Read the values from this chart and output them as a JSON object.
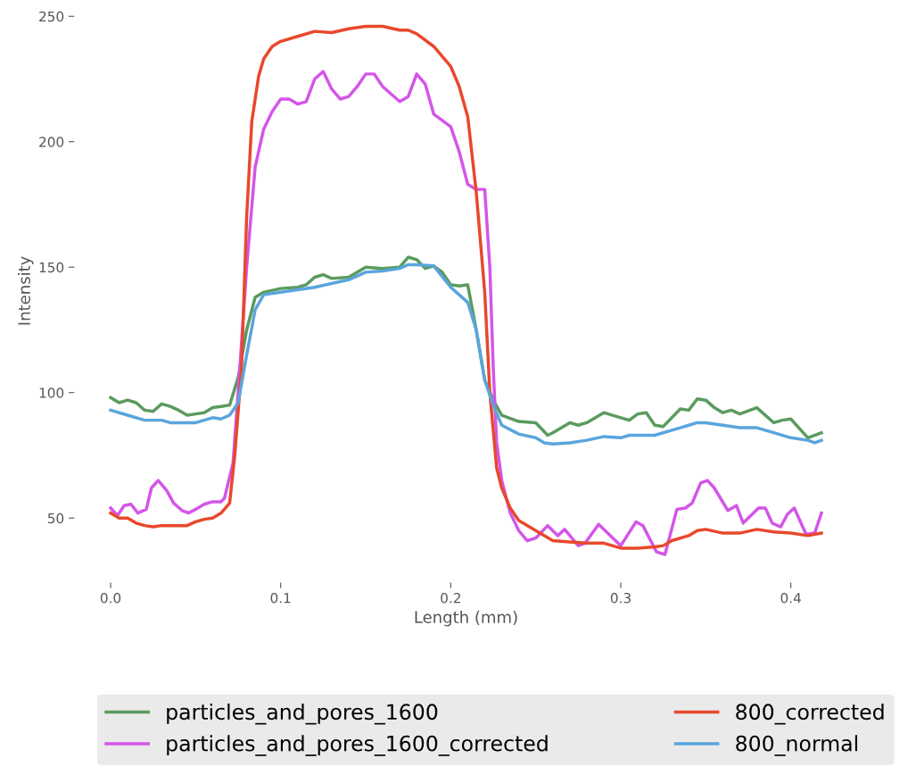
{
  "chart_data": {
    "type": "line",
    "xlabel": "Length (mm)",
    "ylabel": "Intensity",
    "xlim": [
      -0.021,
      0.439
    ],
    "ylim": [
      24.5,
      256.5
    ],
    "xticks": [
      {
        "value": 0,
        "label": "0.0"
      },
      0.1,
      0.2,
      0.3,
      0.4
    ],
    "yticks": [
      50,
      100,
      150,
      200,
      250
    ],
    "grid": false,
    "legend": "bottom",
    "marker": "none",
    "line_style": "solid",
    "series": [
      {
        "name": "particles_and_pores_1600",
        "color": "#5a9b5e",
        "x": [
          0,
          0.005,
          0.01,
          0.015,
          0.02,
          0.025,
          0.03,
          0.035,
          0.04,
          0.045,
          0.05,
          0.055,
          0.06,
          0.065,
          0.07,
          0.075,
          0.08,
          0.085,
          0.09,
          0.1,
          0.11,
          0.115,
          0.12,
          0.125,
          0.13,
          0.14,
          0.15,
          0.16,
          0.17,
          0.175,
          0.18,
          0.185,
          0.19,
          0.195,
          0.2,
          0.205,
          0.21,
          0.215,
          0.22,
          0.225,
          0.23,
          0.24,
          0.25,
          0.257,
          0.26,
          0.27,
          0.275,
          0.28,
          0.29,
          0.3,
          0.305,
          0.31,
          0.315,
          0.32,
          0.325,
          0.335,
          0.34,
          0.345,
          0.35,
          0.355,
          0.36,
          0.365,
          0.37,
          0.38,
          0.39,
          0.395,
          0.4,
          0.41,
          0.418
        ],
        "values": [
          98,
          96,
          97,
          96,
          93,
          92.5,
          95.5,
          94.5,
          93,
          91,
          91.5,
          92,
          94,
          94.5,
          95,
          106,
          125,
          138,
          140,
          141.5,
          142,
          143,
          146,
          147,
          145.5,
          146,
          150,
          149.5,
          150,
          154,
          153,
          149.5,
          150.5,
          148,
          143,
          142.5,
          143,
          125,
          105,
          97,
          91,
          88.5,
          88,
          83,
          84,
          88,
          87,
          88,
          92,
          90,
          89,
          91.5,
          92,
          87,
          86.5,
          93.5,
          93,
          97.5,
          97,
          94,
          92,
          93,
          91.5,
          94,
          88,
          89,
          89.5,
          82,
          84
        ]
      },
      {
        "name": "particles_and_pores_1600_corrected",
        "color": "#d455e8",
        "x": [
          0,
          0.004,
          0.008,
          0.012,
          0.016,
          0.021,
          0.024,
          0.028,
          0.033,
          0.037,
          0.042,
          0.046,
          0.05,
          0.055,
          0.06,
          0.065,
          0.067,
          0.072,
          0.076,
          0.08,
          0.085,
          0.09,
          0.095,
          0.1,
          0.105,
          0.11,
          0.115,
          0.12,
          0.125,
          0.13,
          0.135,
          0.14,
          0.145,
          0.15,
          0.155,
          0.16,
          0.17,
          0.175,
          0.18,
          0.185,
          0.19,
          0.2,
          0.205,
          0.21,
          0.215,
          0.22,
          0.223,
          0.225,
          0.227,
          0.23,
          0.235,
          0.24,
          0.245,
          0.25,
          0.257,
          0.263,
          0.267,
          0.275,
          0.279,
          0.287,
          0.3,
          0.309,
          0.313,
          0.321,
          0.326,
          0.333,
          0.338,
          0.342,
          0.347,
          0.351,
          0.355,
          0.363,
          0.368,
          0.372,
          0.381,
          0.385,
          0.389,
          0.394,
          0.398,
          0.402,
          0.409,
          0.414,
          0.418
        ],
        "values": [
          54,
          51,
          55,
          55.5,
          52,
          53.5,
          62,
          65,
          61,
          56,
          53,
          52,
          53.5,
          55.5,
          56.5,
          56.5,
          58,
          72,
          110,
          150,
          190,
          205,
          212,
          217,
          217,
          215,
          216,
          225,
          228,
          221,
          217,
          218,
          222,
          227,
          227,
          222,
          216,
          218,
          227,
          223,
          211,
          206,
          196,
          183,
          181,
          181,
          150,
          110,
          80,
          65,
          52,
          45,
          41,
          42,
          47,
          43,
          45.5,
          39,
          40,
          47.5,
          39,
          48.5,
          47,
          36.5,
          35.5,
          53.5,
          54,
          56,
          64,
          65,
          62,
          53,
          55,
          48,
          54,
          54,
          48,
          46.5,
          51.5,
          54,
          43.5,
          44,
          52
        ]
      },
      {
        "name": "800_corrected",
        "color": "#e8482c",
        "x": [
          0,
          0.005,
          0.01,
          0.015,
          0.02,
          0.025,
          0.03,
          0.04,
          0.045,
          0.05,
          0.055,
          0.06,
          0.065,
          0.07,
          0.073,
          0.077,
          0.08,
          0.083,
          0.087,
          0.09,
          0.095,
          0.1,
          0.11,
          0.12,
          0.13,
          0.14,
          0.15,
          0.16,
          0.17,
          0.175,
          0.18,
          0.19,
          0.2,
          0.205,
          0.21,
          0.215,
          0.22,
          0.223,
          0.227,
          0.23,
          0.235,
          0.24,
          0.25,
          0.26,
          0.27,
          0.28,
          0.29,
          0.3,
          0.31,
          0.32,
          0.325,
          0.33,
          0.34,
          0.345,
          0.35,
          0.36,
          0.37,
          0.38,
          0.39,
          0.4,
          0.41,
          0.418
        ],
        "values": [
          52,
          50,
          50,
          48,
          47,
          46.5,
          47,
          47,
          47,
          48.5,
          49.5,
          50,
          52,
          56,
          75,
          110,
          170,
          208,
          226,
          233,
          238,
          240,
          242,
          244,
          243.5,
          245,
          246,
          246,
          244.5,
          244.5,
          243,
          238,
          230,
          222,
          210,
          180,
          140,
          100,
          70,
          62,
          54,
          49,
          45,
          41,
          40.5,
          40,
          40,
          38,
          38,
          38.5,
          39,
          41,
          43,
          45,
          45.5,
          44,
          44,
          45.5,
          44.5,
          44,
          43,
          44
        ]
      },
      {
        "name": "800_normal",
        "color": "#5aa5dc",
        "x": [
          0,
          0.01,
          0.02,
          0.03,
          0.035,
          0.04,
          0.05,
          0.055,
          0.06,
          0.065,
          0.07,
          0.075,
          0.08,
          0.085,
          0.09,
          0.1,
          0.11,
          0.12,
          0.13,
          0.14,
          0.15,
          0.16,
          0.17,
          0.175,
          0.18,
          0.19,
          0.2,
          0.21,
          0.215,
          0.22,
          0.225,
          0.23,
          0.24,
          0.25,
          0.255,
          0.26,
          0.27,
          0.28,
          0.29,
          0.3,
          0.305,
          0.32,
          0.33,
          0.34,
          0.345,
          0.35,
          0.36,
          0.37,
          0.38,
          0.39,
          0.4,
          0.41,
          0.414,
          0.418
        ],
        "values": [
          93,
          91,
          89,
          89,
          88,
          88,
          88,
          89,
          90,
          89.5,
          91,
          96,
          115,
          133,
          139,
          140,
          141,
          142,
          143.5,
          145,
          148,
          148.5,
          149.5,
          151,
          151,
          150.5,
          142,
          136,
          125,
          105,
          95,
          87,
          83.5,
          82,
          80,
          79.5,
          80,
          81,
          82.5,
          82,
          83,
          83,
          85,
          87,
          88,
          88,
          87,
          86,
          86,
          84,
          82,
          81,
          80,
          81
        ]
      }
    ]
  }
}
